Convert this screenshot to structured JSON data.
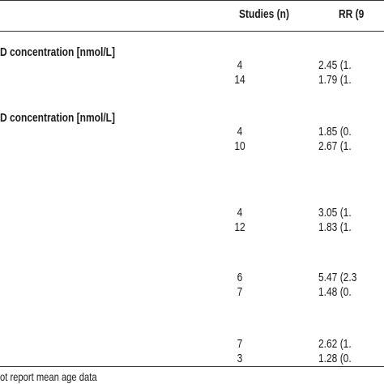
{
  "header": {
    "studies": "Studies (n)",
    "rr": "RR (9"
  },
  "sections": [
    {
      "heading": "D concentration [nmol/L]",
      "rows": [
        [
          "4",
          "2.45 (1."
        ],
        [
          "14",
          "1.79 (1."
        ]
      ]
    },
    {
      "heading": "D concentration [nmol/L]",
      "rows": [
        [
          "4",
          "1.85 (0."
        ],
        [
          "10",
          "2.67 (1."
        ]
      ]
    },
    {
      "rows": [
        [
          "4",
          "3.05 (1."
        ],
        [
          "12",
          "1.83 (1."
        ]
      ]
    },
    {
      "rows": [
        [
          "6",
          "5.47 (2.3"
        ],
        [
          "7",
          "1.48 (0."
        ]
      ]
    },
    {
      "rows": [
        [
          "7",
          "2.62 (1."
        ],
        [
          "3",
          "1.28 (0."
        ]
      ]
    }
  ],
  "footnote": "ot report mean age data"
}
